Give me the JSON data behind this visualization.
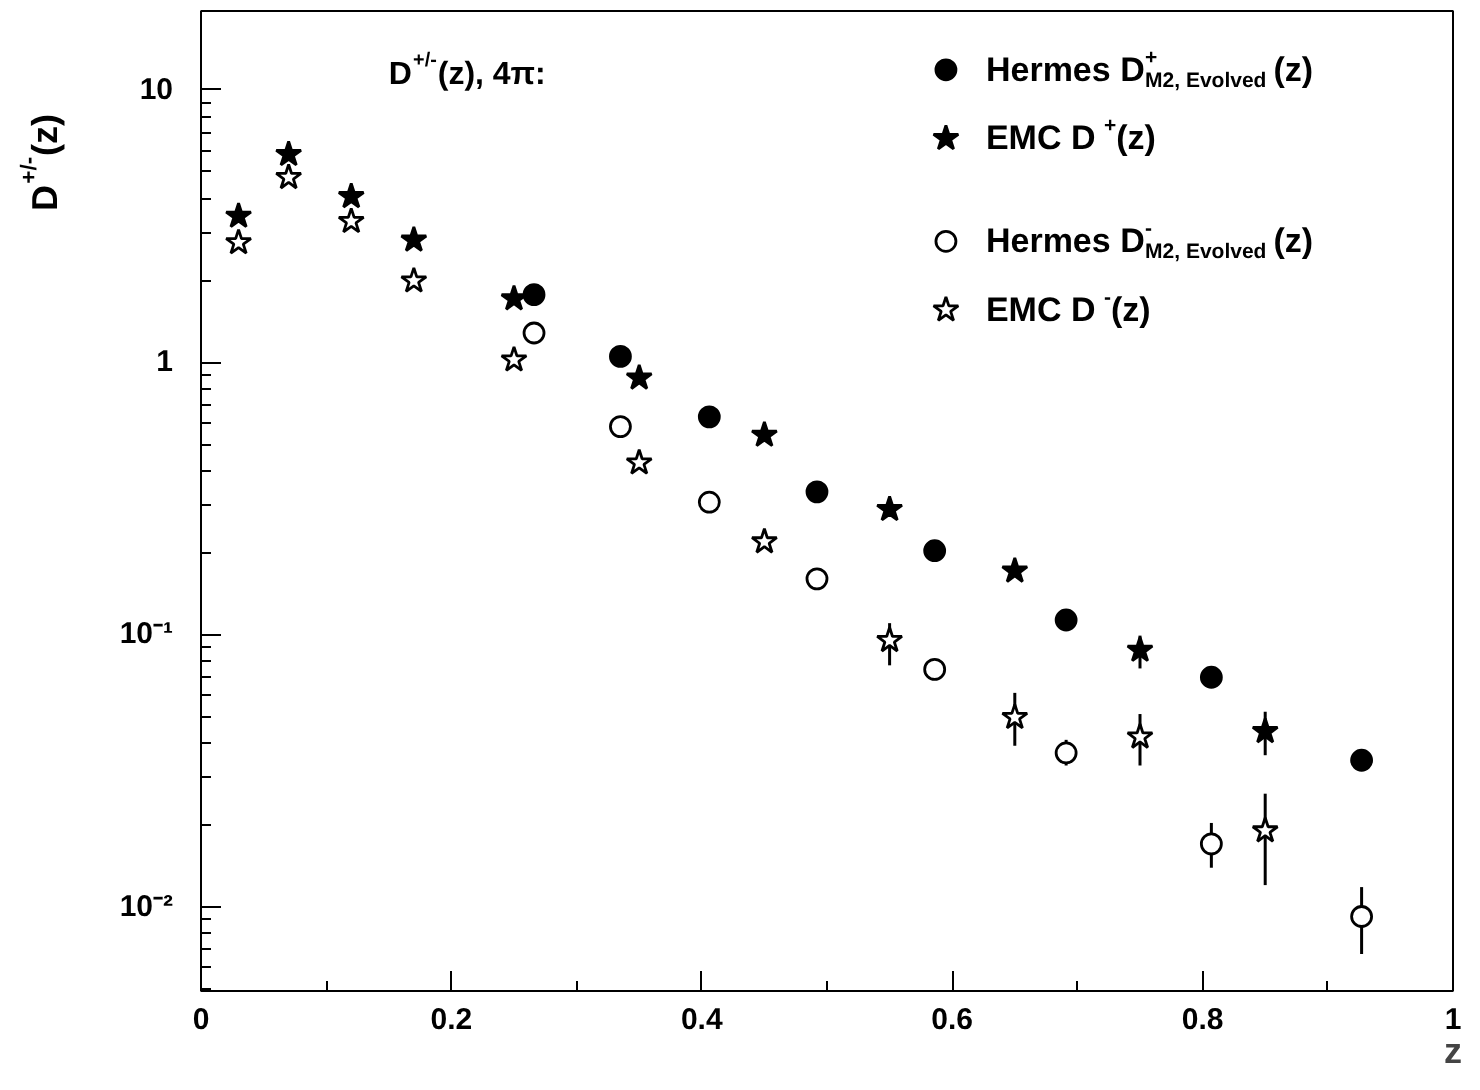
{
  "chart_data": {
    "type": "scatter",
    "ylabel": "D$^{+/-}$(z)",
    "xlabel": "z",
    "annotations": [
      "D$^{+/-}$(z), 4π:"
    ],
    "log": "y",
    "grid": false,
    "legend": "top right",
    "xlim": [
      0,
      1
    ],
    "xticks": [
      0,
      0.2,
      0.4,
      0.6,
      0.8,
      1
    ],
    "ylim": [
      0.0049,
      19.5
    ],
    "yticks": [
      {
        "value": 10,
        "label": "10"
      },
      {
        "value": 1,
        "label": "1"
      },
      {
        "value": 0.1,
        "label": "10⁻¹"
      },
      {
        "value": 0.01,
        "label": "10⁻²"
      }
    ],
    "series": [
      {
        "name": "Hermes D$^{+}$$_{M2, Evolved}$(z)",
        "color": "#000000",
        "marker": "circle",
        "x": [
          0.266,
          0.335,
          0.406,
          0.492,
          0.586,
          0.691,
          0.807,
          0.927
        ],
        "values": [
          1.77,
          1.05,
          0.63,
          0.334,
          0.203,
          0.113,
          0.0696,
          0.0345
        ],
        "errors": [
          null,
          null,
          null,
          null,
          null,
          null,
          null,
          null
        ]
      },
      {
        "name": "EMC D$^{+}$(z)",
        "color": "#000000",
        "marker": "star",
        "x": [
          0.03,
          0.07,
          0.12,
          0.17,
          0.25,
          0.35,
          0.45,
          0.55,
          0.65,
          0.75,
          0.85
        ],
        "values": [
          3.44,
          5.8,
          4.06,
          2.81,
          1.71,
          0.875,
          0.54,
          0.288,
          0.171,
          0.0875,
          0.044
        ],
        "errors": [
          null,
          null,
          null,
          null,
          null,
          null,
          null,
          null,
          null,
          [
            0.075,
            0.099
          ],
          [
            0.036,
            0.052
          ]
        ]
      },
      {
        "name": "Hermes D$^{-}$$_{M2, Evolved}$(z)",
        "color": "#000000",
        "marker": "circle_open",
        "x": [
          0.266,
          0.335,
          0.406,
          0.492,
          0.586,
          0.691,
          0.807,
          0.927
        ],
        "values": [
          1.28,
          0.58,
          0.306,
          0.16,
          0.0744,
          0.0367,
          0.017,
          0.0092
        ],
        "errors": [
          null,
          null,
          null,
          null,
          null,
          [
            0.033,
            0.041
          ],
          [
            0.0139,
            0.0203
          ],
          [
            0.0067,
            0.0118
          ]
        ]
      },
      {
        "name": "EMC D$^{-}$(z)",
        "color": "#000000",
        "marker": "star_open",
        "x": [
          0.03,
          0.07,
          0.12,
          0.17,
          0.25,
          0.35,
          0.45,
          0.55,
          0.65,
          0.75,
          0.85
        ],
        "values": [
          2.75,
          4.77,
          3.29,
          1.99,
          1.02,
          0.427,
          0.219,
          0.095,
          0.0496,
          0.042,
          0.019
        ],
        "errors": [
          null,
          null,
          null,
          null,
          null,
          null,
          null,
          [
            0.077,
            0.11
          ],
          [
            0.039,
            0.061
          ],
          [
            0.033,
            0.051
          ],
          [
            0.012,
            0.026
          ]
        ]
      }
    ]
  }
}
